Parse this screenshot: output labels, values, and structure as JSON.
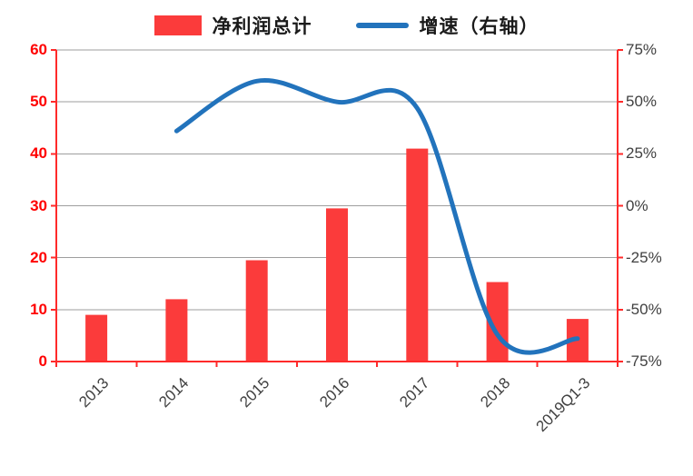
{
  "legend": {
    "bars_label": "净利润总计",
    "line_label": "增速（右轴）"
  },
  "colors": {
    "bar": "#FB3B3B",
    "line": "#2273BC",
    "axis": "#FF2A2A",
    "grid": "#9E9E9E",
    "left_label": "#FF0000",
    "right_label": "#404040",
    "x_label": "#404040"
  },
  "chart_data": {
    "type": "bar",
    "subtype": "bar+line combo, dual axis",
    "title": "",
    "categories": [
      "2013",
      "2014",
      "2015",
      "2016",
      "2017",
      "2018",
      "2019Q1-3"
    ],
    "series": [
      {
        "name": "净利润总计",
        "type": "bar",
        "axis": "left",
        "values": [
          9,
          12,
          19.5,
          29.5,
          41,
          15.3,
          8.2
        ]
      },
      {
        "name": "增速（右轴）",
        "type": "line",
        "axis": "right",
        "unit": "%",
        "values": [
          null,
          36,
          60,
          50,
          47,
          -62,
          -64
        ]
      }
    ],
    "left_axis": {
      "min": 0,
      "max": 60,
      "step": 10,
      "ticks": [
        "0",
        "10",
        "20",
        "30",
        "40",
        "50",
        "60"
      ]
    },
    "right_axis": {
      "min": -75,
      "max": 75,
      "step": 25,
      "ticks": [
        "75%",
        "50%",
        "25%",
        "0%",
        "-25%",
        "-50%",
        "-75%"
      ]
    },
    "grid": true,
    "legend_position": "top"
  }
}
